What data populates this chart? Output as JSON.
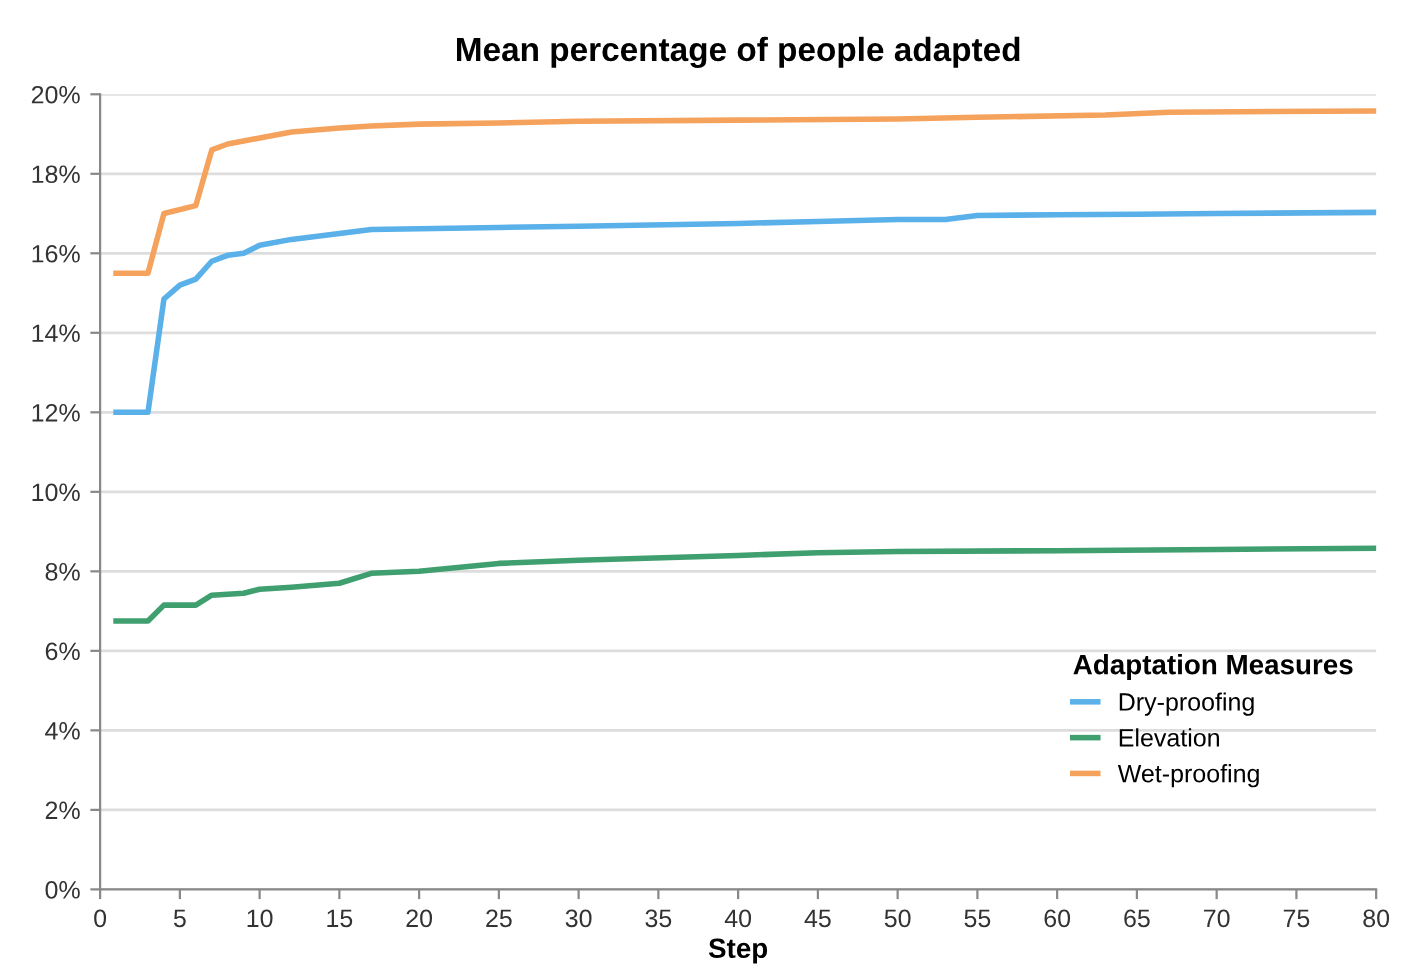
{
  "chart_data": {
    "type": "line",
    "title": "Mean percentage of people adapted",
    "xlabel": "Step",
    "legend_title": "Adaptation Measures",
    "legend": "bottom right",
    "grid": "y",
    "marker": "none",
    "line_style": "solid",
    "xlim": [
      0,
      80
    ],
    "xticks": [
      0,
      5,
      10,
      15,
      20,
      25,
      30,
      35,
      40,
      45,
      50,
      55,
      60,
      65,
      70,
      75,
      80
    ],
    "ylim": [
      0,
      20
    ],
    "yticks": [
      {
        "value": 0,
        "label": "0%"
      },
      {
        "value": 2,
        "label": "2%"
      },
      {
        "value": 4,
        "label": "4%"
      },
      {
        "value": 6,
        "label": "6%"
      },
      {
        "value": 8,
        "label": "8%"
      },
      {
        "value": 10,
        "label": "10%"
      },
      {
        "value": 12,
        "label": "12%"
      },
      {
        "value": 14,
        "label": "14%"
      },
      {
        "value": 16,
        "label": "16%"
      },
      {
        "value": 18,
        "label": "18%"
      },
      {
        "value": 20,
        "label": "20%"
      }
    ],
    "series": [
      {
        "name": "Dry-proofing",
        "color": "#5ab0e8",
        "x": [
          1,
          2,
          3,
          4,
          5,
          6,
          7,
          8,
          9,
          10,
          12,
          15,
          17,
          20,
          25,
          30,
          40,
          45,
          50,
          53,
          55,
          60,
          65,
          70,
          80
        ],
        "values": [
          12,
          12,
          12,
          14.85,
          15.2,
          15.35,
          15.8,
          15.95,
          16.0,
          16.2,
          16.35,
          16.5,
          16.6,
          16.62,
          16.65,
          16.68,
          16.75,
          16.8,
          16.85,
          16.85,
          16.95,
          16.97,
          16.98,
          17.0,
          17.03
        ]
      },
      {
        "name": "Elevation",
        "color": "#3f9f6f",
        "x": [
          1,
          3,
          4,
          6,
          7,
          9,
          10,
          12,
          15,
          17,
          20,
          25,
          30,
          40,
          45,
          50,
          60,
          70,
          80
        ],
        "values": [
          6.75,
          6.75,
          7.15,
          7.15,
          7.4,
          7.45,
          7.55,
          7.6,
          7.7,
          7.95,
          8.0,
          8.2,
          8.28,
          8.4,
          8.47,
          8.5,
          8.52,
          8.55,
          8.58
        ]
      },
      {
        "name": "Wet-proofing",
        "color": "#f5a25d",
        "x": [
          1,
          3,
          4,
          6,
          7,
          8,
          10,
          12,
          15,
          17,
          20,
          25,
          30,
          40,
          50,
          55,
          63,
          67,
          80
        ],
        "values": [
          15.5,
          15.5,
          17.0,
          17.2,
          18.6,
          18.75,
          18.9,
          19.05,
          19.15,
          19.2,
          19.25,
          19.28,
          19.32,
          19.35,
          19.38,
          19.42,
          19.48,
          19.55,
          19.58
        ]
      }
    ]
  }
}
